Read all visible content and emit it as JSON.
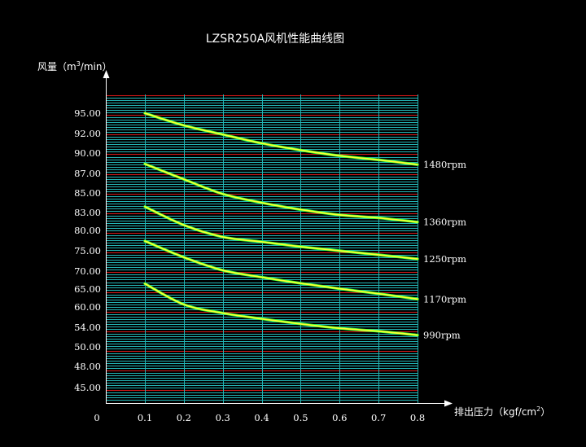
{
  "chart_data": {
    "type": "line",
    "title": "LZSR250A风机性能曲线图",
    "ylabel": "风量（m³/min）",
    "ylabel_parts": {
      "prefix": "风量（m",
      "sup": "3",
      "suffix": "/min）"
    },
    "xlabel": "排出压力（kgf/cm²）",
    "xlabel_parts": {
      "prefix": "排出压力（kgf/cm",
      "sup": "2",
      "suffix": "）"
    },
    "origin_label": "0",
    "x_ticks": [
      "0.1",
      "0.2",
      "0.3",
      "0.4",
      "0.5",
      "0.6",
      "0.7",
      "0.8"
    ],
    "y_ticks": [
      "45.00",
      "48.00",
      "50.00",
      "54.00",
      "60.00",
      "65.00",
      "70.00",
      "75.00",
      "80.00",
      "83.00",
      "85.00",
      "87.00",
      "90.00",
      "92.00",
      "95.00"
    ],
    "xlim": [
      0,
      0.8
    ],
    "grid": true,
    "series": [
      {
        "name": "1480rpm",
        "x": [
          0.1,
          0.2,
          0.3,
          0.4,
          0.5,
          0.6,
          0.7,
          0.8
        ],
        "y": [
          95.0,
          93.2,
          91.9,
          91.0,
          90.3,
          89.6,
          89.0,
          88.3
        ]
      },
      {
        "name": "1360rpm",
        "x": [
          0.1,
          0.2,
          0.3,
          0.4,
          0.5,
          0.6,
          0.7,
          0.8
        ],
        "y": [
          88.4,
          86.4,
          84.9,
          84.0,
          83.3,
          82.6,
          82.1,
          81.4
        ]
      },
      {
        "name": "1250rpm",
        "x": [
          0.1,
          0.2,
          0.3,
          0.4,
          0.5,
          0.6,
          0.7,
          0.8
        ],
        "y": [
          83.6,
          80.9,
          78.4,
          77.2,
          76.0,
          75.0,
          74.0,
          73.0
        ]
      },
      {
        "name": "1170rpm",
        "x": [
          0.1,
          0.2,
          0.3,
          0.4,
          0.5,
          0.6,
          0.7,
          0.8
        ],
        "y": [
          77.4,
          73.4,
          70.2,
          68.3,
          66.6,
          65.1,
          63.7,
          62.2
        ]
      },
      {
        "name": "990rpm",
        "x": [
          0.1,
          0.2,
          0.3,
          0.4,
          0.5,
          0.6,
          0.7,
          0.8
        ],
        "y": [
          66.5,
          60.7,
          58.2,
          56.5,
          55.0,
          53.8,
          53.2,
          52.4
        ]
      }
    ],
    "colors": {
      "curve": "#ffff33",
      "curve_edge": "#33ff33",
      "grid_major": "#d01818",
      "grid_minor": "#22b5b5",
      "axis": "#ffffff"
    }
  }
}
